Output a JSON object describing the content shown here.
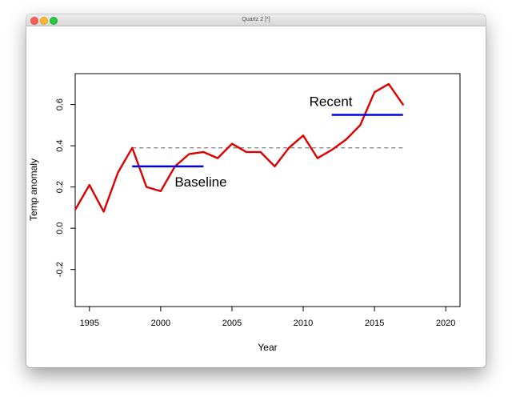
{
  "window": {
    "title": "Quartz 2 [*]"
  },
  "chart_data": {
    "type": "line",
    "title": "",
    "xlabel": "Year",
    "ylabel": "Temp anomaly",
    "xlim": [
      1994,
      2021
    ],
    "ylim": [
      -0.38,
      0.75
    ],
    "grid": false,
    "x_ticks": [
      1995,
      2000,
      2005,
      2010,
      2015,
      2020
    ],
    "x_tick_labels": [
      "1995",
      "2000",
      "2005",
      "2010",
      "2015",
      "2020"
    ],
    "y_ticks": [
      -0.2,
      0.0,
      0.2,
      0.4,
      0.6
    ],
    "y_tick_labels": [
      "-0.2",
      "0.0",
      "0.2",
      "0.4",
      "0.6"
    ],
    "series": [
      {
        "color": "#dd0000",
        "x": [
          1994,
          1995,
          1996,
          1997,
          1998,
          1999,
          2000,
          2001,
          2002,
          2003,
          2004,
          2005,
          2006,
          2007,
          2008,
          2009,
          2010,
          2011,
          2012,
          2013,
          2014,
          2015,
          2016,
          2017
        ],
        "y": [
          0.09,
          0.21,
          0.08,
          0.27,
          0.39,
          0.2,
          0.18,
          0.3,
          0.36,
          0.37,
          0.34,
          0.41,
          0.37,
          0.37,
          0.3,
          0.39,
          0.45,
          0.34,
          0.38,
          0.43,
          0.5,
          0.66,
          0.7,
          0.6
        ]
      }
    ],
    "reference_line": {
      "y": 0.39,
      "x_from": 1998,
      "x_to": 2017,
      "color": "#888888",
      "style": "dashed"
    },
    "segments": [
      {
        "label": "Baseline",
        "x_from": 1998,
        "x_to": 2003,
        "y": 0.3,
        "color": "#0000ee"
      },
      {
        "label": "Recent",
        "x_from": 2012,
        "x_to": 2017,
        "y": 0.55,
        "color": "#0000ee"
      }
    ]
  }
}
